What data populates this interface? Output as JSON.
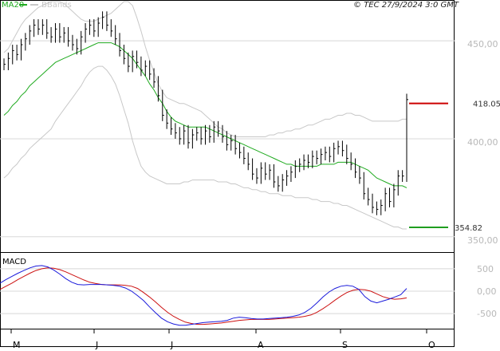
{
  "header": {
    "ma_label": "MA20",
    "bbands_label": "BBands",
    "copyright": "© TEC 27/9/2024 3:0 GMT"
  },
  "colors": {
    "ma": "#1faa1f",
    "bbands": "#c8c8c8",
    "price": "#000000",
    "resistance": "#cc0000",
    "support": "#1f9e1f",
    "macd": "#1a1adb",
    "signal": "#cc1111",
    "grid": "#d8d8d8"
  },
  "levels": {
    "resistance": {
      "value": 418.05,
      "label": "418.05"
    },
    "support": {
      "value": 354.82,
      "label": "354.82"
    }
  },
  "macd_panel": {
    "label": "MACD"
  },
  "chart_data": [
    {
      "type": "ohlc",
      "title": "",
      "ylim": [
        343,
        470
      ],
      "y_ticks": [
        {
          "value": 350,
          "label": "350,00"
        },
        {
          "value": 400,
          "label": "400,00"
        },
        {
          "value": 450,
          "label": "450,00"
        }
      ],
      "x_months": [
        "M",
        "J",
        "J",
        "A",
        "S",
        "O"
      ],
      "grid": true,
      "price_close": [
        438,
        441,
        445,
        443,
        448,
        451,
        455,
        458,
        456,
        458,
        454,
        452,
        456,
        452,
        454,
        450,
        448,
        446,
        452,
        456,
        458,
        455,
        459,
        462,
        458,
        455,
        451,
        445,
        441,
        437,
        442,
        439,
        435,
        437,
        433,
        429,
        422,
        412,
        408,
        405,
        403,
        400,
        404,
        398,
        402,
        403,
        400,
        404,
        401,
        406,
        404,
        401,
        397,
        399,
        395,
        393,
        390,
        387,
        382,
        380,
        385,
        382,
        384,
        378,
        376,
        379,
        381,
        383,
        386,
        387,
        389,
        388,
        391,
        390,
        392,
        393,
        391,
        395,
        396,
        394,
        390,
        387,
        383,
        380,
        372,
        369,
        365,
        364,
        366,
        372,
        368,
        374,
        381,
        381,
        420
      ],
      "ma20": [
        412,
        414,
        417,
        419,
        422,
        424,
        427,
        429,
        431,
        433,
        435,
        437,
        439,
        440,
        441,
        442,
        443,
        444,
        445,
        446,
        447,
        448,
        449,
        449,
        449,
        449,
        448,
        447,
        445,
        443,
        441,
        438,
        435,
        432,
        428,
        425,
        421,
        418,
        414,
        411,
        409,
        408,
        407,
        406,
        406,
        406,
        406,
        406,
        405,
        404,
        403,
        402,
        401,
        400,
        399,
        398,
        397,
        396,
        395,
        394,
        393,
        392,
        391,
        390,
        389,
        388,
        387,
        387,
        386,
        386,
        386,
        386,
        386,
        386,
        387,
        387,
        387,
        387,
        388,
        388,
        388,
        388,
        387,
        386,
        385,
        384,
        382,
        380,
        379,
        378,
        377,
        376,
        376,
        376,
        375
      ],
      "bb_upper": [
        444,
        446,
        450,
        454,
        458,
        461,
        463,
        465,
        467,
        468,
        469,
        470,
        470,
        470,
        469,
        467,
        465,
        463,
        461,
        460,
        460,
        460,
        461,
        462,
        463,
        464,
        466,
        468,
        470,
        470,
        468,
        462,
        455,
        447,
        440,
        434,
        428,
        424,
        421,
        420,
        419,
        418,
        418,
        417,
        416,
        415,
        414,
        412,
        410,
        408,
        406,
        405,
        403,
        402,
        401,
        401,
        401,
        401,
        401,
        401,
        401,
        401,
        402,
        402,
        403,
        403,
        404,
        404,
        405,
        405,
        406,
        407,
        407,
        408,
        409,
        410,
        410,
        411,
        412,
        412,
        413,
        413,
        412,
        412,
        411,
        410,
        409,
        409,
        409,
        409,
        409,
        409,
        409,
        410,
        410
      ],
      "bb_lower": [
        380,
        382,
        385,
        387,
        390,
        392,
        395,
        397,
        399,
        401,
        403,
        405,
        409,
        412,
        415,
        418,
        421,
        424,
        427,
        431,
        434,
        436,
        437,
        437,
        435,
        432,
        428,
        422,
        415,
        408,
        399,
        392,
        386,
        383,
        381,
        380,
        379,
        378,
        377,
        377,
        377,
        377,
        378,
        378,
        379,
        379,
        379,
        379,
        379,
        379,
        378,
        378,
        378,
        377,
        377,
        376,
        375,
        375,
        374,
        374,
        373,
        373,
        372,
        372,
        372,
        371,
        371,
        371,
        370,
        370,
        370,
        370,
        369,
        369,
        368,
        368,
        368,
        367,
        367,
        366,
        366,
        365,
        364,
        363,
        362,
        361,
        360,
        359,
        358,
        357,
        356,
        355,
        355,
        354,
        354
      ],
      "macd_ylim": [
        -800,
        800
      ],
      "macd_ticks": [
        {
          "value": 500,
          "label": "500"
        },
        {
          "value": 0,
          "label": "0,00"
        },
        {
          "value": -500,
          "label": "-500"
        }
      ],
      "macd": [
        180,
        260,
        330,
        400,
        460,
        520,
        560,
        570,
        540,
        470,
        380,
        280,
        200,
        150,
        140,
        150,
        150,
        150,
        140,
        130,
        110,
        70,
        0,
        -100,
        -210,
        -350,
        -480,
        -600,
        -680,
        -730,
        -760,
        -760,
        -740,
        -720,
        -700,
        -690,
        -680,
        -670,
        -650,
        -600,
        -580,
        -590,
        -610,
        -620,
        -620,
        -610,
        -600,
        -590,
        -580,
        -560,
        -530,
        -470,
        -380,
        -260,
        -130,
        -20,
        60,
        110,
        130,
        110,
        40,
        -120,
        -220,
        -260,
        -220,
        -180,
        -130,
        -80,
        60
      ],
      "signal": [
        40,
        110,
        180,
        260,
        330,
        400,
        460,
        500,
        520,
        510,
        480,
        430,
        370,
        310,
        250,
        200,
        170,
        150,
        140,
        140,
        140,
        130,
        110,
        60,
        -30,
        -130,
        -240,
        -360,
        -470,
        -560,
        -630,
        -690,
        -720,
        -740,
        -740,
        -730,
        -720,
        -710,
        -690,
        -670,
        -650,
        -640,
        -630,
        -630,
        -630,
        -630,
        -620,
        -610,
        -600,
        -590,
        -580,
        -560,
        -530,
        -470,
        -390,
        -300,
        -200,
        -110,
        -30,
        20,
        40,
        30,
        0,
        -60,
        -120,
        -160,
        -180,
        -170,
        -150
      ]
    }
  ]
}
